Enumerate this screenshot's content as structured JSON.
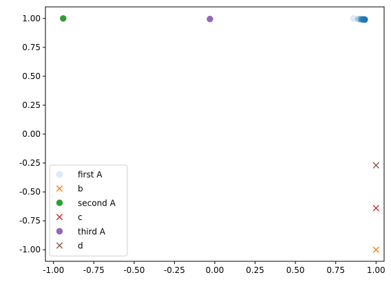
{
  "chart_data": {
    "type": "scatter",
    "title": "",
    "xlabel": "",
    "ylabel": "",
    "xlim": [
      -1.05,
      1.05
    ],
    "ylim": [
      -1.1,
      1.1
    ],
    "xticks": [
      "-1.00",
      "-0.75",
      "-0.50",
      "-0.25",
      "0.00",
      "0.25",
      "0.50",
      "0.75",
      "1.00"
    ],
    "yticks": [
      "-1.00",
      "-0.75",
      "-0.50",
      "-0.25",
      "0.00",
      "0.25",
      "0.50",
      "0.75",
      "1.00"
    ],
    "grid": false,
    "legend_position": "lower-left",
    "series": [
      {
        "name": "first A",
        "marker": "circle",
        "color": "#1f77b4",
        "points": [
          {
            "x": 0.86,
            "y": 1.0,
            "alpha": 0.15
          },
          {
            "x": 0.89,
            "y": 0.995,
            "alpha": 0.3
          },
          {
            "x": 0.905,
            "y": 0.993,
            "alpha": 0.5
          },
          {
            "x": 0.915,
            "y": 0.992,
            "alpha": 0.7
          },
          {
            "x": 0.925,
            "y": 0.991,
            "alpha": 0.9
          },
          {
            "x": 0.93,
            "y": 0.99,
            "alpha": 1.0
          }
        ]
      },
      {
        "name": "b",
        "marker": "x",
        "color": "#ff7f0e",
        "points": [
          {
            "x": 1.0,
            "y": -1.0,
            "alpha": 1.0
          }
        ]
      },
      {
        "name": "second A",
        "marker": "circle",
        "color": "#2ca02c",
        "points": [
          {
            "x": -0.94,
            "y": 1.0,
            "alpha": 1.0
          }
        ]
      },
      {
        "name": "c",
        "marker": "x",
        "color": "#d62728",
        "points": [
          {
            "x": 1.0,
            "y": -0.64,
            "alpha": 1.0
          }
        ]
      },
      {
        "name": "third A",
        "marker": "circle",
        "color": "#9467bd",
        "points": [
          {
            "x": -0.03,
            "y": 0.995,
            "alpha": 1.0
          }
        ]
      },
      {
        "name": "d",
        "marker": "x",
        "color": "#8c564b",
        "points": [
          {
            "x": 1.0,
            "y": -0.27,
            "alpha": 1.0
          }
        ]
      }
    ]
  }
}
